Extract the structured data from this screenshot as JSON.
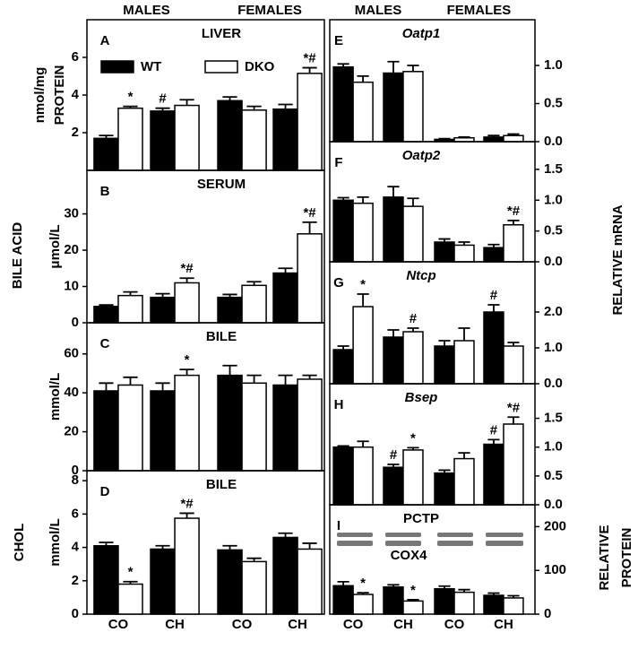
{
  "labels": {
    "bile_acid": "BILE ACID",
    "chol": "CHOL",
    "relative_mrna": "RELATIVE mRNA",
    "relative_protein": [
      "RELATIVE",
      "PROTEIN"
    ]
  },
  "chart_data": [
    {
      "type": "bar",
      "letter": "A",
      "title": "LIVER",
      "ylabel": [
        "nmol/mg",
        "PROTEIN"
      ],
      "groups": [
        "MALES",
        "FEMALES"
      ],
      "ylim": [
        0,
        8
      ],
      "yticks": [
        2,
        4,
        6
      ],
      "series": [
        {
          "name": "WT",
          "color": "#000000",
          "values": [
            1.7,
            3.15,
            3.7,
            3.25
          ],
          "errors": [
            0.15,
            0.15,
            0.2,
            0.25
          ],
          "annotations": [
            null,
            "#",
            null,
            null
          ]
        },
        {
          "name": "DKO",
          "color": "#ffffff",
          "values": [
            3.3,
            3.45,
            3.2,
            5.15
          ],
          "errors": [
            0.1,
            0.3,
            0.2,
            0.3
          ],
          "annotations": [
            "*",
            null,
            null,
            "*#"
          ]
        }
      ]
    },
    {
      "type": "bar",
      "letter": "B",
      "title": "SERUM",
      "ylabel": [
        "μmol/L"
      ],
      "ylim": [
        0,
        42
      ],
      "yticks": [
        0,
        10,
        20,
        30
      ],
      "series": [
        {
          "color": "#000000",
          "values": [
            4.5,
            7,
            7,
            13.7
          ],
          "errors": [
            0.4,
            1,
            0.8,
            1.3
          ],
          "annotations": [
            null,
            null,
            null,
            null
          ]
        },
        {
          "color": "#ffffff",
          "values": [
            7.5,
            11,
            10.3,
            24.5
          ],
          "errors": [
            1,
            1.3,
            1,
            3.2
          ],
          "annotations": [
            null,
            "*#",
            null,
            "*#"
          ]
        }
      ]
    },
    {
      "type": "bar",
      "letter": "C",
      "title": "BILE",
      "ylabel": [
        "mmol/L"
      ],
      "ylim": [
        0,
        76
      ],
      "yticks": [
        0,
        20,
        40,
        60
      ],
      "series": [
        {
          "color": "#000000",
          "values": [
            41,
            41,
            49,
            44
          ],
          "errors": [
            4,
            4,
            5,
            5
          ],
          "annotations": [
            null,
            null,
            null,
            null
          ]
        },
        {
          "color": "#ffffff",
          "values": [
            44,
            49,
            45,
            47
          ],
          "errors": [
            4,
            3,
            4,
            2
          ],
          "annotations": [
            null,
            "*",
            null,
            null
          ]
        }
      ]
    },
    {
      "type": "bar",
      "letter": "D",
      "title": "BILE",
      "ylabel": [
        "mmol/L"
      ],
      "categories": [
        "CO",
        "CH",
        "CO",
        "CH"
      ],
      "ylim": [
        0,
        8.6
      ],
      "yticks": [
        0,
        2,
        4,
        6,
        8
      ],
      "series": [
        {
          "color": "#000000",
          "values": [
            4.1,
            3.9,
            3.85,
            4.6
          ],
          "errors": [
            0.2,
            0.2,
            0.25,
            0.25
          ],
          "annotations": [
            null,
            null,
            null,
            null
          ]
        },
        {
          "color": "#ffffff",
          "values": [
            1.8,
            5.75,
            3.15,
            3.9
          ],
          "errors": [
            0.15,
            0.3,
            0.2,
            0.35
          ],
          "annotations": [
            "*",
            "*#",
            null,
            null
          ]
        }
      ]
    },
    {
      "type": "bar",
      "letter": "E",
      "title": "Oatp1",
      "italic_title": true,
      "groups": [
        "MALES",
        "FEMALES"
      ],
      "ylim": [
        0,
        1.6
      ],
      "yticks": [
        {
          "value": 0,
          "label": "0.0"
        },
        {
          "value": 0.5,
          "label": "0.5"
        },
        {
          "value": 1,
          "label": "1.0"
        }
      ],
      "series": [
        {
          "color": "#000000",
          "values": [
            0.98,
            0.9,
            0.03,
            0.06
          ],
          "errors": [
            0.04,
            0.15,
            0.01,
            0.02
          ],
          "annotations": [
            null,
            null,
            null,
            null
          ]
        },
        {
          "color": "#ffffff",
          "values": [
            0.78,
            0.92,
            0.05,
            0.08
          ],
          "errors": [
            0.08,
            0.08,
            0.01,
            0.02
          ],
          "annotations": [
            null,
            null,
            null,
            null
          ]
        }
      ]
    },
    {
      "type": "bar",
      "letter": "F",
      "title": "Oatp2",
      "italic_title": true,
      "ylim": [
        0,
        1.95
      ],
      "yticks": [
        {
          "value": 0,
          "label": "0.0"
        },
        {
          "value": 0.5,
          "label": "0.5"
        },
        {
          "value": 1,
          "label": "1.0"
        },
        {
          "value": 1.5,
          "label": "1.5"
        }
      ],
      "series": [
        {
          "color": "#000000",
          "values": [
            1.0,
            1.05,
            0.32,
            0.23
          ],
          "errors": [
            0.04,
            0.17,
            0.05,
            0.05
          ],
          "annotations": [
            null,
            null,
            null,
            null
          ]
        },
        {
          "color": "#ffffff",
          "values": [
            0.95,
            0.9,
            0.27,
            0.6
          ],
          "errors": [
            0.1,
            0.13,
            0.05,
            0.07
          ],
          "annotations": [
            null,
            null,
            null,
            "*#"
          ]
        }
      ]
    },
    {
      "type": "bar",
      "letter": "G",
      "title": "Ntcp",
      "italic_title": true,
      "ylim": [
        0,
        3.4
      ],
      "yticks": [
        {
          "value": 0,
          "label": "0.0"
        },
        {
          "value": 1,
          "label": "1.0"
        },
        {
          "value": 2,
          "label": "2.0"
        }
      ],
      "series": [
        {
          "color": "#000000",
          "values": [
            0.95,
            1.3,
            1.05,
            2.0
          ],
          "errors": [
            0.1,
            0.2,
            0.15,
            0.2
          ],
          "annotations": [
            null,
            null,
            null,
            "#"
          ]
        },
        {
          "color": "#ffffff",
          "values": [
            2.15,
            1.45,
            1.2,
            1.05
          ],
          "errors": [
            0.35,
            0.1,
            0.35,
            0.1
          ],
          "annotations": [
            "*",
            "#",
            null,
            null
          ]
        }
      ]
    },
    {
      "type": "bar",
      "letter": "H",
      "title": "Bsep",
      "italic_title": true,
      "ylim": [
        0,
        2.1
      ],
      "yticks": [
        {
          "value": 0,
          "label": "0.0"
        },
        {
          "value": 0.5,
          "label": "0.5"
        },
        {
          "value": 1,
          "label": "1.0"
        },
        {
          "value": 1.5,
          "label": "1.5"
        }
      ],
      "series": [
        {
          "color": "#000000",
          "values": [
            1.0,
            0.65,
            0.55,
            1.05
          ],
          "errors": [
            0.02,
            0.05,
            0.05,
            0.08
          ],
          "annotations": [
            null,
            "#",
            null,
            "#"
          ]
        },
        {
          "color": "#ffffff",
          "values": [
            1.0,
            0.95,
            0.8,
            1.4
          ],
          "errors": [
            0.1,
            0.04,
            0.1,
            0.12
          ],
          "annotations": [
            null,
            "*",
            null,
            "*#"
          ]
        }
      ]
    },
    {
      "type": "bar",
      "letter": "I",
      "title": "PCTP",
      "blot_label": "COX4",
      "categories": [
        "CO",
        "CH",
        "CO",
        "CH"
      ],
      "ylim": [
        0,
        250
      ],
      "yticks": [
        0,
        100,
        200
      ],
      "series": [
        {
          "color": "#000000",
          "values": [
            65,
            62,
            58,
            43
          ],
          "errors": [
            9,
            5,
            6,
            5
          ],
          "annotations": [
            null,
            null,
            null,
            null
          ]
        },
        {
          "color": "#ffffff",
          "values": [
            45,
            30,
            50,
            37
          ],
          "errors": [
            4,
            3,
            6,
            5
          ],
          "annotations": [
            "*",
            "*",
            null,
            null
          ]
        }
      ]
    }
  ]
}
